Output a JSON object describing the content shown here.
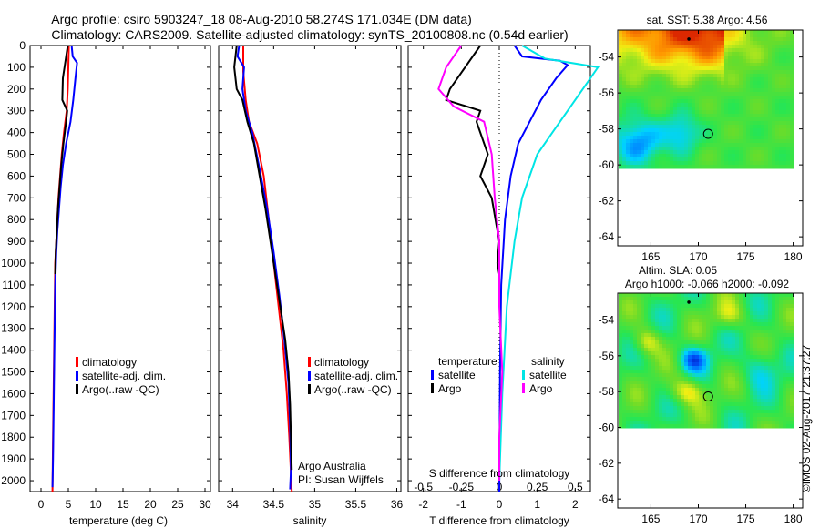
{
  "title": {
    "line1": "Argo profile: csiro 5903247_18 08-Aug-2010 58.274S 171.034E (DM data)",
    "line2": "Climatology: CARS2009. Satellite-adjusted climatology: synTS_20100808.nc (0.54d earlier)"
  },
  "colors": {
    "climatology": "#ff0000",
    "satellite": "#0000ff",
    "argo": "#000000",
    "sat_salinity": "#00e5e5",
    "argo_salinity": "#ff00ff"
  },
  "depth_ticks": [
    "0",
    "100",
    "200",
    "300",
    "400",
    "500",
    "600",
    "700",
    "800",
    "900",
    "1000",
    "1100",
    "1200",
    "1300",
    "1400",
    "1500",
    "1600",
    "1700",
    "1800",
    "1900",
    "2000"
  ],
  "credit": "Argo Australia",
  "pi": "PI: Susan Wijffels",
  "timestamp": "©IMOS 02-Aug-2017 21:37:27",
  "chart_data": [
    {
      "type": "line",
      "name": "temperature profile",
      "xlabel": "temperature (deg C)",
      "xticks": [
        "0",
        "5",
        "10",
        "15",
        "20",
        "25",
        "30"
      ],
      "xlim": [
        -2,
        31
      ],
      "ylim": [
        0,
        2050
      ],
      "legend": [
        "climatology",
        "satellite-adj. clim.",
        "Argo(..raw -QC)"
      ],
      "series": [
        {
          "name": "climatology",
          "color": "#ff0000",
          "points": [
            [
              5.1,
              0
            ],
            [
              5.0,
              100
            ],
            [
              4.9,
              200
            ],
            [
              4.7,
              300
            ],
            [
              4.2,
              400
            ],
            [
              3.8,
              500
            ],
            [
              3.5,
              600
            ],
            [
              3.2,
              700
            ],
            [
              3.0,
              800
            ],
            [
              2.8,
              900
            ],
            [
              2.6,
              1000
            ],
            [
              2.5,
              1200
            ],
            [
              2.4,
              1400
            ],
            [
              2.3,
              1600
            ],
            [
              2.2,
              1800
            ],
            [
              2.1,
              2050
            ]
          ]
        },
        {
          "name": "satellite-adj. clim.",
          "color": "#0000ff",
          "points": [
            [
              5.6,
              0
            ],
            [
              5.8,
              50
            ],
            [
              6.6,
              80
            ],
            [
              6.3,
              150
            ],
            [
              5.9,
              250
            ],
            [
              5.4,
              350
            ],
            [
              4.6,
              450
            ],
            [
              4.0,
              550
            ],
            [
              3.6,
              650
            ],
            [
              3.3,
              750
            ],
            [
              3.0,
              850
            ],
            [
              2.8,
              950
            ],
            [
              2.6,
              1100
            ],
            [
              2.5,
              1300
            ],
            [
              2.4,
              1500
            ],
            [
              2.3,
              1700
            ],
            [
              2.2,
              1900
            ],
            [
              2.1,
              2030
            ]
          ]
        },
        {
          "name": "Argo(..raw -QC)",
          "color": "#000000",
          "points": [
            [
              4.9,
              0
            ],
            [
              4.6,
              50
            ],
            [
              4.0,
              150
            ],
            [
              3.9,
              250
            ],
            [
              4.8,
              300
            ],
            [
              4.6,
              350
            ],
            [
              4.1,
              450
            ],
            [
              3.7,
              550
            ],
            [
              3.4,
              650
            ],
            [
              3.1,
              750
            ],
            [
              2.9,
              850
            ],
            [
              2.7,
              950
            ],
            [
              2.6,
              1050
            ]
          ]
        }
      ]
    },
    {
      "type": "line",
      "name": "salinity profile",
      "xlabel": "salinity",
      "xticks": [
        "34",
        "34.5",
        "35",
        "35.5",
        "36"
      ],
      "xlim": [
        33.83,
        36.05
      ],
      "ylim": [
        0,
        2050
      ],
      "legend": [
        "climatology",
        "satellite-adj. clim.",
        "Argo(..raw -QC)"
      ],
      "series": [
        {
          "name": "climatology",
          "color": "#ff0000",
          "points": [
            [
              34.13,
              0
            ],
            [
              34.13,
              120
            ],
            [
              34.16,
              250
            ],
            [
              34.2,
              350
            ],
            [
              34.3,
              450
            ],
            [
              34.38,
              600
            ],
            [
              34.44,
              800
            ],
            [
              34.5,
              1000
            ],
            [
              34.56,
              1200
            ],
            [
              34.62,
              1400
            ],
            [
              34.66,
              1600
            ],
            [
              34.69,
              1800
            ],
            [
              34.72,
              2050
            ]
          ]
        },
        {
          "name": "satellite-adj. clim.",
          "color": "#0000ff",
          "points": [
            [
              34.08,
              0
            ],
            [
              34.06,
              50
            ],
            [
              34.14,
              100
            ],
            [
              34.12,
              200
            ],
            [
              34.16,
              300
            ],
            [
              34.24,
              400
            ],
            [
              34.32,
              550
            ],
            [
              34.42,
              750
            ],
            [
              34.5,
              950
            ],
            [
              34.57,
              1150
            ],
            [
              34.63,
              1350
            ],
            [
              34.68,
              1550
            ],
            [
              34.7,
              1750
            ],
            [
              34.71,
              1950
            ],
            [
              34.7,
              2040
            ]
          ]
        },
        {
          "name": "Argo(..raw -QC)",
          "color": "#000000",
          "points": [
            [
              34.05,
              0
            ],
            [
              34.02,
              100
            ],
            [
              34.05,
              200
            ],
            [
              34.12,
              250
            ],
            [
              34.18,
              350
            ],
            [
              34.26,
              450
            ],
            [
              34.33,
              600
            ],
            [
              34.4,
              750
            ],
            [
              34.46,
              900
            ],
            [
              34.52,
              1050
            ],
            [
              34.58,
              1200
            ],
            [
              34.64,
              1350
            ],
            [
              34.68,
              1500
            ],
            [
              34.7,
              1650
            ],
            [
              34.71,
              1800
            ],
            [
              34.72,
              1950
            ]
          ]
        }
      ]
    },
    {
      "type": "line",
      "name": "difference from climatology",
      "xlabel": "T difference from climatology",
      "xlabel_top": "S difference from climatology",
      "xticks": [
        "-2",
        "-1",
        "0",
        "1",
        "2"
      ],
      "xticks_top": [
        "-0.5",
        "-0.25",
        "0",
        "0.25",
        "0.5"
      ],
      "xlim": [
        -2.4,
        2.4
      ],
      "ylim": [
        0,
        2050
      ],
      "legend_headers": [
        "temperature",
        "salinity"
      ],
      "legend": [
        "satellite",
        "Argo",
        "satellite",
        "Argo"
      ],
      "series": [
        {
          "name": "temperature satellite",
          "color": "#0000ff",
          "points": [
            [
              0.4,
              0
            ],
            [
              0.6,
              50
            ],
            [
              1.6,
              70
            ],
            [
              1.8,
              90
            ],
            [
              1.5,
              150
            ],
            [
              1.1,
              250
            ],
            [
              0.8,
              350
            ],
            [
              0.5,
              450
            ],
            [
              0.3,
              600
            ],
            [
              0.15,
              800
            ],
            [
              0.05,
              1100
            ],
            [
              0.02,
              1500
            ],
            [
              0.0,
              2050
            ]
          ]
        },
        {
          "name": "temperature Argo",
          "color": "#000000",
          "points": [
            [
              -0.5,
              0
            ],
            [
              -0.9,
              100
            ],
            [
              -1.3,
              200
            ],
            [
              -1.4,
              250
            ],
            [
              -0.5,
              300
            ],
            [
              -0.6,
              350
            ],
            [
              -0.3,
              500
            ],
            [
              -0.5,
              600
            ],
            [
              -0.2,
              700
            ],
            [
              -0.1,
              800
            ],
            [
              0.0,
              900
            ],
            [
              -0.05,
              1000
            ],
            [
              0.0,
              1050
            ]
          ]
        },
        {
          "name": "salinity satellite",
          "color": "#00e5e5",
          "points": [
            [
              0.15,
              0
            ],
            [
              0.3,
              60
            ],
            [
              0.65,
              100
            ],
            [
              0.6,
              150
            ],
            [
              0.55,
              200
            ],
            [
              0.45,
              300
            ],
            [
              0.35,
              400
            ],
            [
              0.25,
              500
            ],
            [
              0.15,
              700
            ],
            [
              0.1,
              900
            ],
            [
              0.05,
              1200
            ],
            [
              0.02,
              1600
            ],
            [
              0.0,
              2000
            ]
          ]
        },
        {
          "name": "salinity Argo",
          "color": "#ff00ff",
          "points": [
            [
              -0.25,
              0
            ],
            [
              -0.35,
              100
            ],
            [
              -0.4,
              200
            ],
            [
              -0.3,
              280
            ],
            [
              -0.1,
              350
            ],
            [
              -0.05,
              500
            ],
            [
              -0.03,
              700
            ],
            [
              0.0,
              900
            ],
            [
              0.0,
              1200
            ],
            [
              0.02,
              1500
            ],
            [
              0.0,
              1800
            ],
            [
              0.0,
              2000
            ]
          ]
        }
      ]
    },
    {
      "type": "heatmap",
      "name": "satellite SST map",
      "title": "sat. SST: 5.38 Argo: 4.56",
      "xticks": [
        "165",
        "170",
        "175",
        "180"
      ],
      "yticks": [
        "-54",
        "-56",
        "-58",
        "-60",
        "-62",
        "-64"
      ],
      "xlim": [
        161.5,
        181
      ],
      "ylim": [
        -64.5,
        -52.5
      ],
      "data_lat_min": -60,
      "argo_position": [
        171.034,
        -58.274
      ],
      "prev_position": [
        169.0,
        -52.8
      ]
    },
    {
      "type": "heatmap",
      "name": "altimetry SLA map",
      "title_line1": "Altim. SLA: 0.05",
      "title_line2": "Argo h1000: -0.066 h2000: -0.092",
      "xticks": [
        "165",
        "170",
        "175",
        "180"
      ],
      "yticks": [
        "-54",
        "-56",
        "-58",
        "-60",
        "-62",
        "-64"
      ],
      "xlim": [
        161.5,
        181
      ],
      "ylim": [
        -64.5,
        -52.5
      ],
      "data_lat_min": -60,
      "argo_position": [
        171.034,
        -58.274
      ],
      "prev_position": [
        169.0,
        -52.8
      ]
    }
  ]
}
